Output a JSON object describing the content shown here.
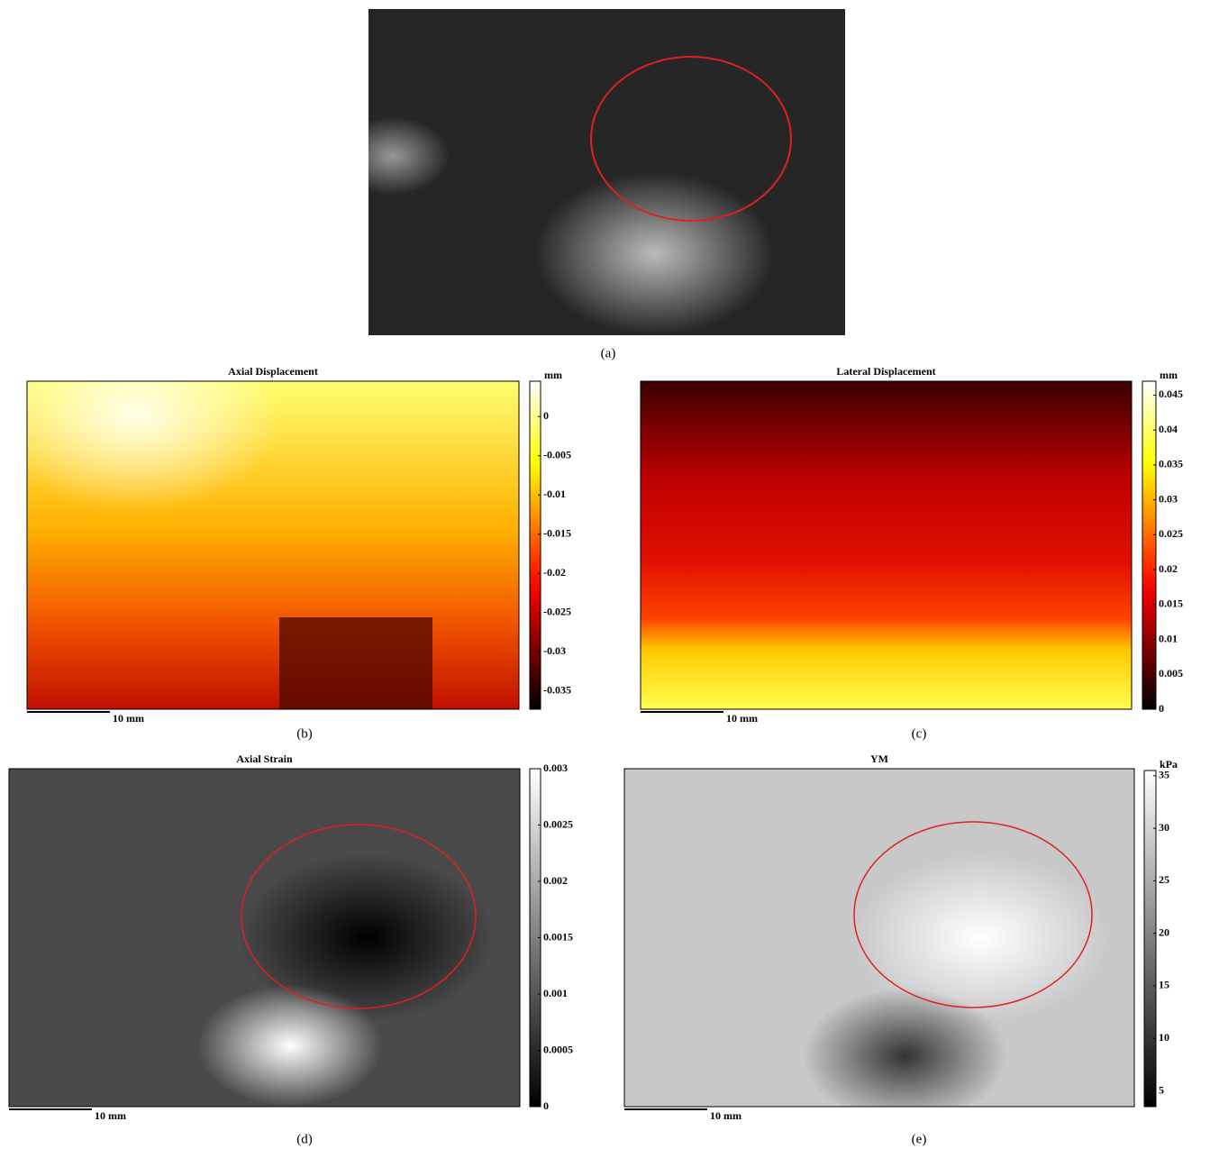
{
  "chart_data": [
    {
      "type": "image",
      "caption": "(a)"
    },
    {
      "type": "heatmap",
      "title": "Axial Displacement",
      "colormap": "hot",
      "colorbar_label": "mm",
      "clim": [
        -0.0373,
        0.0045
      ],
      "cticks": [
        0,
        -0.005,
        -0.01,
        -0.015,
        -0.02,
        -0.025,
        -0.03,
        -0.035
      ],
      "scale_bar": "10 mm",
      "caption": "(b)"
    },
    {
      "type": "heatmap",
      "title": "Lateral Displacement",
      "colormap": "hot",
      "colorbar_label": "mm",
      "clim": [
        0,
        0.047
      ],
      "cticks": [
        0,
        0.005,
        0.01,
        0.015,
        0.02,
        0.025,
        0.03,
        0.035,
        0.04,
        0.045
      ],
      "scale_bar": "10 mm",
      "caption": "(c)"
    },
    {
      "type": "heatmap",
      "title": "Axial Strain",
      "colormap": "gray",
      "clim": [
        0,
        0.003
      ],
      "cticks": [
        0,
        0.0005,
        0.001,
        0.0015,
        0.002,
        0.0025,
        0.003
      ],
      "scale_bar": "10 mm",
      "caption": "(d)"
    },
    {
      "type": "heatmap",
      "title": "YM",
      "colormap": "gray",
      "colorbar_label": "kPa",
      "clim": [
        3.5,
        35.5
      ],
      "cticks": [
        5,
        10,
        15,
        20,
        25,
        30,
        35
      ],
      "scale_bar": "10 mm",
      "caption": "(e)"
    }
  ]
}
